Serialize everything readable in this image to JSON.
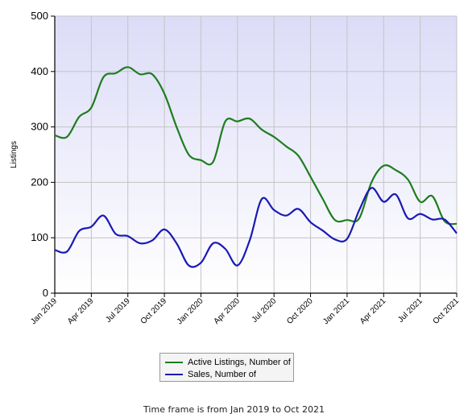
{
  "chart_data": {
    "type": "line",
    "ylabel": "Listings",
    "ylim": [
      0,
      500
    ],
    "yticks": [
      "0",
      "100",
      "200",
      "300",
      "400",
      "500"
    ],
    "x_tick_labels": [
      "Jan 2019",
      "Apr 2019",
      "Jul 2019",
      "Oct 2019",
      "Jan 2020",
      "Apr 2020",
      "Jul 2020",
      "Oct 2020",
      "Jan 2021",
      "Apr 2021",
      "Jul 2021",
      "Oct 2021"
    ],
    "x": [
      "2019-01",
      "2019-02",
      "2019-03",
      "2019-04",
      "2019-05",
      "2019-06",
      "2019-07",
      "2019-08",
      "2019-09",
      "2019-10",
      "2019-11",
      "2019-12",
      "2020-01",
      "2020-02",
      "2020-03",
      "2020-04",
      "2020-05",
      "2020-06",
      "2020-07",
      "2020-08",
      "2020-09",
      "2020-10",
      "2020-11",
      "2020-12",
      "2021-01",
      "2021-02",
      "2021-03",
      "2021-04",
      "2021-05",
      "2021-06",
      "2021-07",
      "2021-08",
      "2021-09",
      "2021-10"
    ],
    "series": [
      {
        "name": "Active Listings, Number of",
        "color": "#1e7d1e",
        "values": [
          285,
          282,
          318,
          335,
          390,
          397,
          408,
          395,
          395,
          360,
          300,
          250,
          240,
          237,
          310,
          310,
          315,
          295,
          282,
          265,
          248,
          210,
          170,
          132,
          132,
          135,
          200,
          230,
          222,
          205,
          165,
          175,
          130,
          125
        ]
      },
      {
        "name": "Sales, Number of",
        "color": "#1a1ab4",
        "values": [
          78,
          75,
          112,
          120,
          140,
          107,
          103,
          90,
          95,
          115,
          90,
          50,
          55,
          90,
          80,
          50,
          95,
          170,
          150,
          140,
          152,
          128,
          113,
          97,
          98,
          150,
          190,
          165,
          178,
          135,
          143,
          133,
          133,
          108
        ]
      }
    ],
    "grid": true,
    "legend_position": "bottom-center",
    "background": "#ebebfd"
  },
  "footer": {
    "text": "Time frame is from Jan 2019 to Oct 2021"
  }
}
